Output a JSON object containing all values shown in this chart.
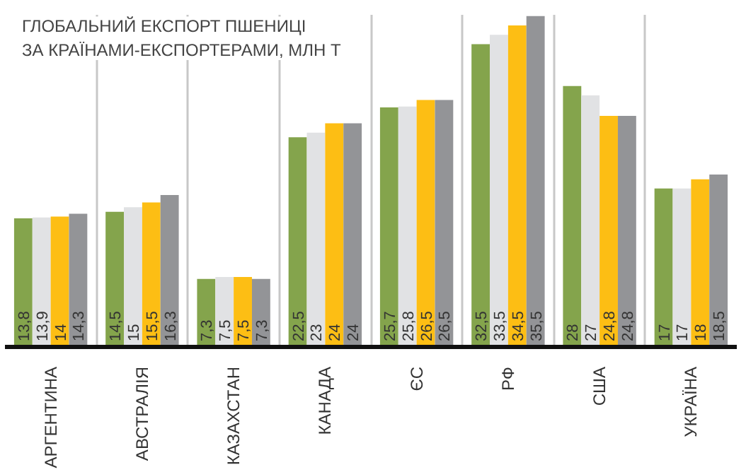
{
  "chart_data": {
    "type": "bar",
    "title": "ГЛОБАЛЬНИЙ ЕКСПОРТ ПШЕНИЦІ\nЗА КРАЇНАМИ-ЕКСПОРТЕРАМИ, МЛН Т",
    "categories": [
      "АРГЕНТИНА",
      "АВСТРАЛІЯ",
      "КАЗАХСТАН",
      "КАНАДА",
      "ЄС",
      "РФ",
      "США",
      "УКРАЇНА"
    ],
    "series": [
      {
        "color": "#84a44c",
        "values": [
          13.8,
          14.5,
          7.3,
          22.5,
          25.7,
          32.5,
          28,
          17
        ],
        "value_labels": [
          "13,8",
          "14,5",
          "7,3",
          "22,5",
          "25,7",
          "32,5",
          "28",
          "17"
        ]
      },
      {
        "color": "#e1e2e4",
        "values": [
          13.9,
          15,
          7.5,
          23,
          25.8,
          33.5,
          27,
          17
        ],
        "value_labels": [
          "13,9",
          "15",
          "7,5",
          "23",
          "25,8",
          "33,5",
          "27",
          "17"
        ]
      },
      {
        "color": "#fdbe14",
        "values": [
          14,
          15.5,
          7.5,
          24,
          26.5,
          34.5,
          24.8,
          18
        ],
        "value_labels": [
          "14",
          "15,5",
          "7,5",
          "24",
          "26,5",
          "34,5",
          "24,8",
          "18"
        ]
      },
      {
        "color": "#939497",
        "values": [
          14.3,
          16.3,
          7.3,
          24,
          26.5,
          35.5,
          24.8,
          18.5
        ],
        "value_labels": [
          "14,3",
          "16,3",
          "7,3",
          "24",
          "26,5",
          "35,5",
          "24,8",
          "18,5"
        ]
      }
    ],
    "grid": "x"
  }
}
